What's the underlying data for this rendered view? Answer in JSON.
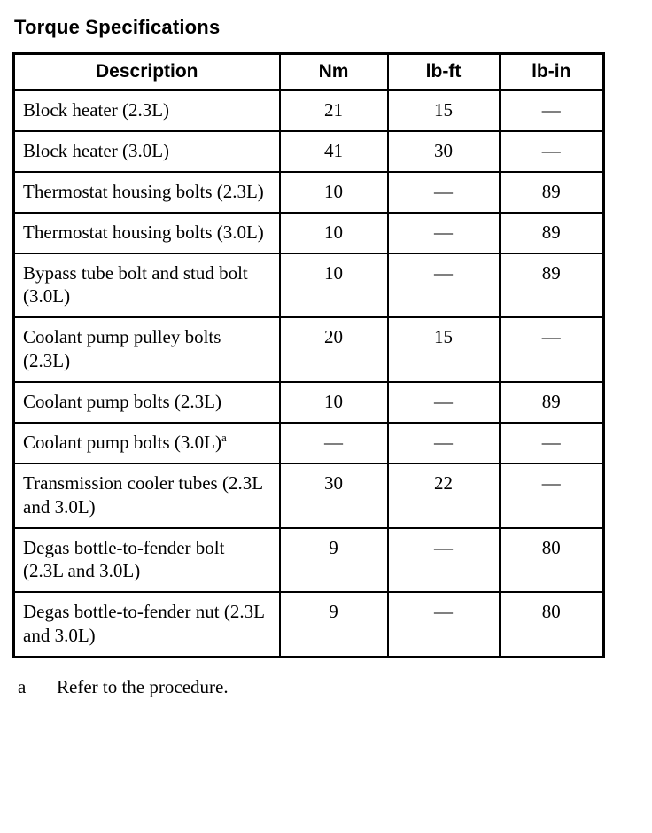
{
  "page": {
    "title": "Torque Specifications"
  },
  "table": {
    "headers": {
      "description": "Description",
      "nm": "Nm",
      "lbft": "lb-ft",
      "lbin": "lb-in"
    },
    "rows": [
      {
        "description": "Block heater (2.3L)",
        "nm": "21",
        "lbft": "15",
        "lbin": "—"
      },
      {
        "description": "Block heater (3.0L)",
        "nm": "41",
        "lbft": "30",
        "lbin": "—"
      },
      {
        "description": "Thermostat housing bolts (2.3L)",
        "nm": "10",
        "lbft": "—",
        "lbin": "89"
      },
      {
        "description": "Thermostat housing bolts (3.0L)",
        "nm": "10",
        "lbft": "—",
        "lbin": "89"
      },
      {
        "description": "Bypass tube bolt and stud bolt (3.0L)",
        "nm": "10",
        "lbft": "—",
        "lbin": "89"
      },
      {
        "description": "Coolant pump pulley bolts (2.3L)",
        "nm": "20",
        "lbft": "15",
        "lbin": "—"
      },
      {
        "description": "Coolant pump bolts (2.3L)",
        "nm": "10",
        "lbft": "—",
        "lbin": "89"
      },
      {
        "description": "Coolant pump bolts (3.0L)",
        "marker": "a",
        "nm": "—",
        "lbft": "—",
        "lbin": "—"
      },
      {
        "description": "Transmission cooler tubes (2.3L and 3.0L)",
        "nm": "30",
        "lbft": "22",
        "lbin": "—"
      },
      {
        "description": "Degas bottle-to-fender bolt (2.3L and 3.0L)",
        "nm": "9",
        "lbft": "—",
        "lbin": "80"
      },
      {
        "description": "Degas bottle-to-fender nut (2.3L and 3.0L)",
        "nm": "9",
        "lbft": "—",
        "lbin": "80"
      }
    ]
  },
  "footnote": {
    "marker": "a",
    "text": "Refer to the procedure."
  }
}
